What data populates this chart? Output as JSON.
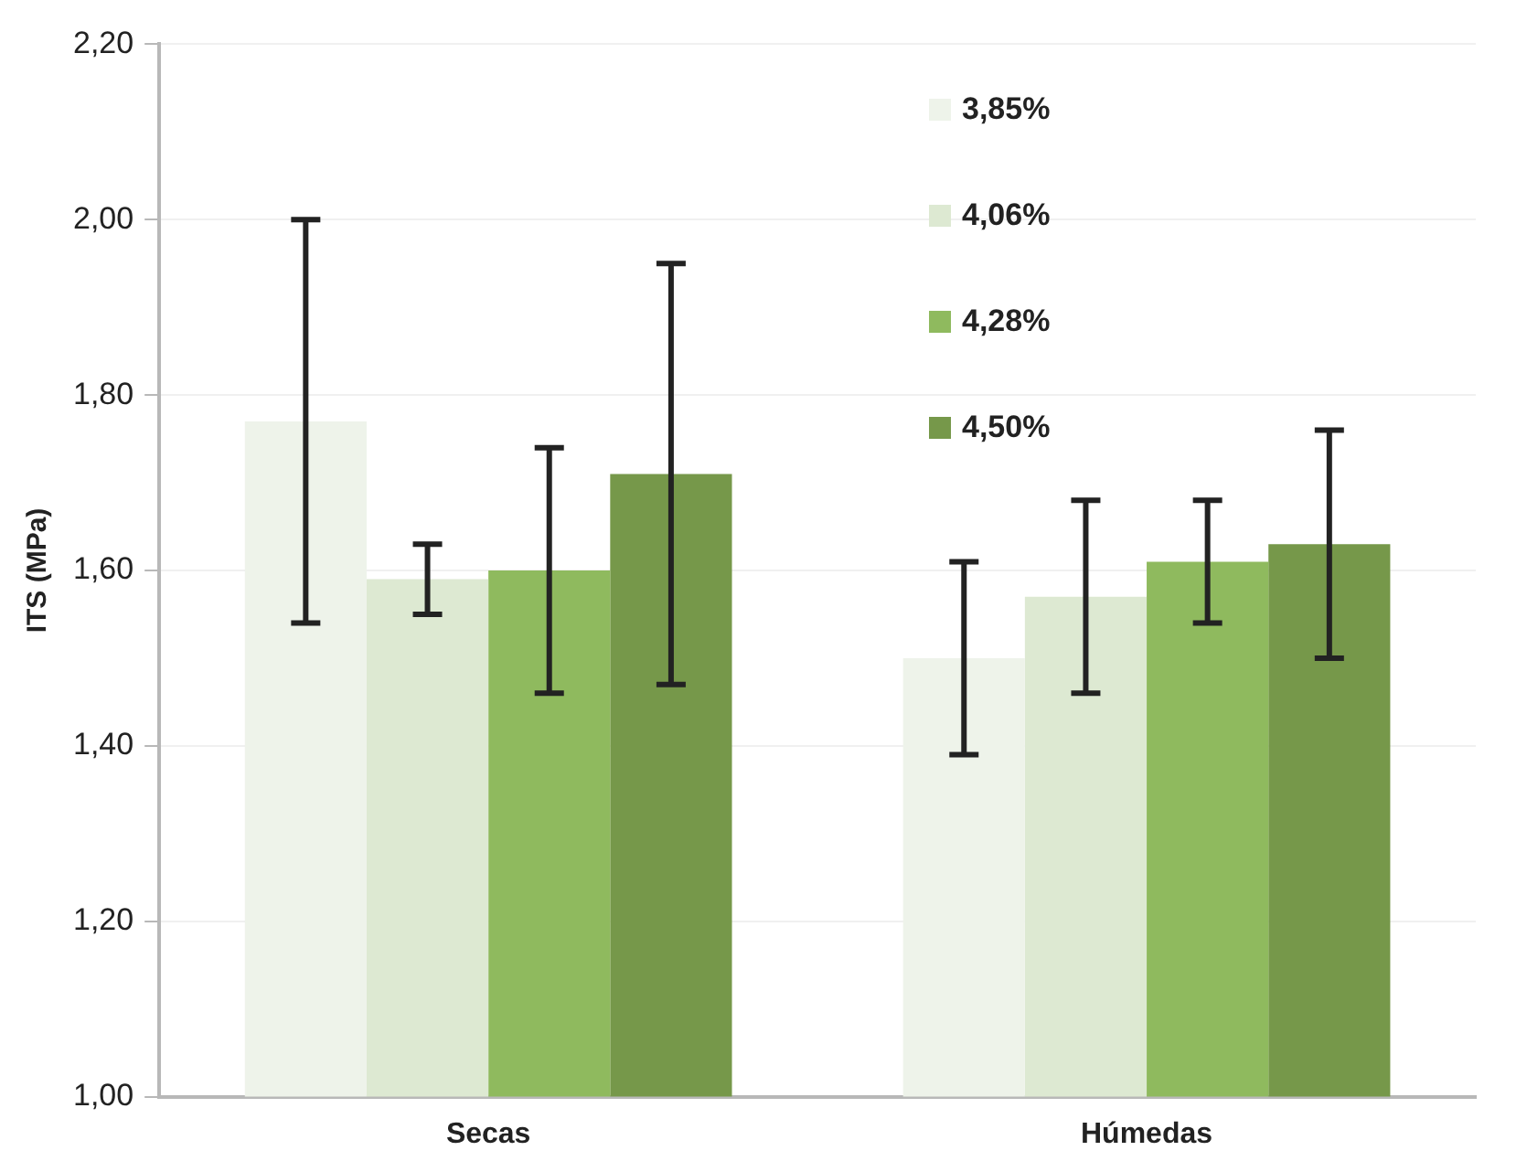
{
  "chart_data": {
    "type": "bar",
    "ylabel": "ITS (MPa)",
    "categories": [
      "Secas",
      "Húmedas"
    ],
    "series": [
      {
        "name": "3,85%",
        "color": "#eef3ea",
        "values": [
          1.77,
          1.5
        ],
        "errors": [
          0.23,
          0.11
        ]
      },
      {
        "name": "4,06%",
        "color": "#dde9d2",
        "values": [
          1.59,
          1.57
        ],
        "errors": [
          0.04,
          0.11
        ]
      },
      {
        "name": "4,28%",
        "color": "#8fba5e",
        "values": [
          1.6,
          1.61
        ],
        "errors": [
          0.14,
          0.07
        ]
      },
      {
        "name": "4,50%",
        "color": "#76984a",
        "values": [
          1.71,
          1.63
        ],
        "errors": [
          0.24,
          0.13
        ]
      }
    ],
    "ylim": [
      1.0,
      2.2
    ],
    "yticks": [
      {
        "value": 1.0,
        "label": "1,00"
      },
      {
        "value": 1.2,
        "label": "1,20"
      },
      {
        "value": 1.4,
        "label": "1,40"
      },
      {
        "value": 1.6,
        "label": "1,60"
      },
      {
        "value": 1.8,
        "label": "1,80"
      },
      {
        "value": 2.0,
        "label": "2,00"
      },
      {
        "value": 2.2,
        "label": "2,20"
      }
    ],
    "grid": "y",
    "legend": "top right"
  }
}
